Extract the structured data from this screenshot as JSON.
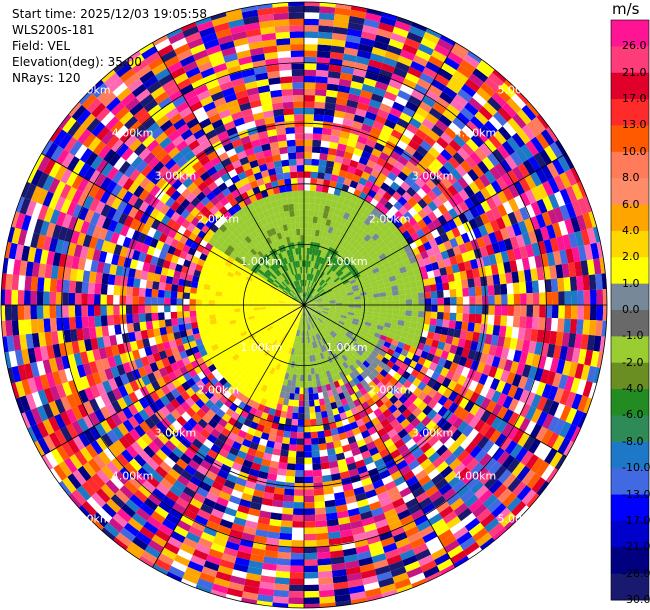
{
  "header": {
    "start_time": "Start time: 2025/12/03 19:05:58",
    "instrument": "WLS200s-181",
    "field": "Field: VEL",
    "elevation": "Elevation(deg): 35.00",
    "nrays": "NRays: 120"
  },
  "chart_data": {
    "type": "ppi-radar",
    "field": "VEL",
    "units": "m/s",
    "elevation_deg": 35.0,
    "nrays": 120,
    "range_rings_km": [
      1,
      2,
      3,
      4,
      5
    ],
    "ring_labels": [
      "1.00km",
      "2.00km",
      "3.00km",
      "4.00km",
      "5.00km"
    ],
    "max_range_km": 5.0,
    "colorbar": {
      "ticks": [
        "26.0",
        "21.0",
        "17.0",
        "13.0",
        "10.0",
        "8.0",
        "6.0",
        "4.0",
        "2.0",
        "1.0",
        "0.0",
        "-1.0",
        "-2.0",
        "-4.0",
        "-6.0",
        "-8.0",
        "-10.0",
        "-13.0",
        "-17.0",
        "-21.0",
        "-26.0",
        "-30.0"
      ],
      "colors": [
        "#ff1493",
        "#ff3c7a",
        "#e0002a",
        "#ff2a2a",
        "#ff5a00",
        "#ff7b5a",
        "#ff8c69",
        "#ffa500",
        "#ffd700",
        "#ffff00",
        "#778899",
        "#696969",
        "#9acd32",
        "#6b8e23",
        "#228b22",
        "#2e8b57",
        "#1e78c8",
        "#4169e1",
        "#0000ff",
        "#0000cd",
        "#000080",
        "#191970"
      ]
    }
  }
}
